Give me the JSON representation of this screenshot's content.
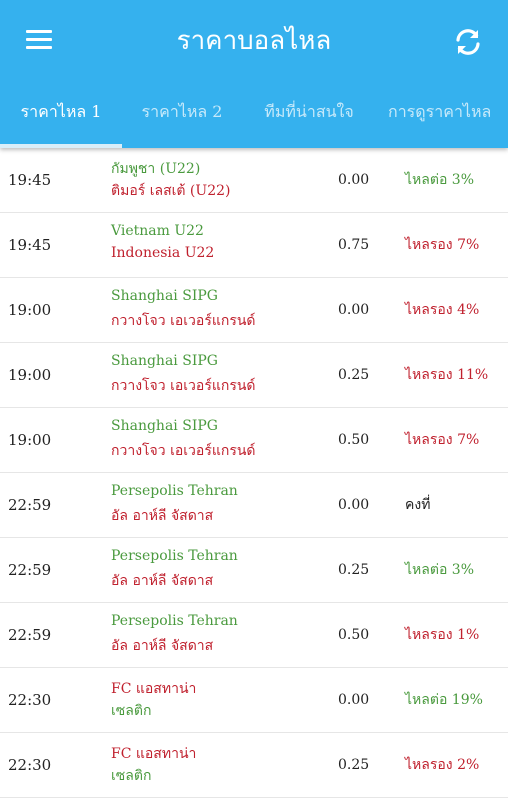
{
  "colors": {
    "appbar": "#35B1EE",
    "green": "#4A9A3E",
    "red": "#C0212E",
    "neutral": "#222222"
  },
  "header": {
    "title": "ราคาบอลไหล",
    "menu_icon": "hamburger-menu-icon",
    "refresh_icon": "refresh-icon"
  },
  "tabs": [
    {
      "label": "ราคาไหล 1",
      "active": true
    },
    {
      "label": "ราคาไหล 2",
      "active": false
    },
    {
      "label": "ทีมที่น่าสนใจ",
      "active": false
    },
    {
      "label": "การดูราคาไหล",
      "active": false
    }
  ],
  "matches": [
    {
      "time": "19:45",
      "home": "กัมพูชา (U22)",
      "home_color": "#4A9A3E",
      "away": "ติมอร์ เลสเต้ (U22)",
      "away_color": "#C0212E",
      "rate": "0.00",
      "odds": "ไหลต่อ 3%",
      "odds_color": "#4A9A3E"
    },
    {
      "time": "19:45",
      "home": "Vietnam U22",
      "home_color": "#4A9A3E",
      "away": "Indonesia U22",
      "away_color": "#C0212E",
      "rate": "0.75",
      "odds": "ไหลรอง 7%",
      "odds_color": "#C0212E"
    },
    {
      "time": "19:00",
      "home": "Shanghai SIPG",
      "home_color": "#4A9A3E",
      "away": "กวางโจว เอเวอร์แกรนด์",
      "away_color": "#C0212E",
      "rate": "0.00",
      "odds": "ไหลรอง 4%",
      "odds_color": "#C0212E"
    },
    {
      "time": "19:00",
      "home": "Shanghai SIPG",
      "home_color": "#4A9A3E",
      "away": "กวางโจว เอเวอร์แกรนด์",
      "away_color": "#C0212E",
      "rate": "0.25",
      "odds": "ไหลรอง 11%",
      "odds_color": "#C0212E"
    },
    {
      "time": "19:00",
      "home": "Shanghai SIPG",
      "home_color": "#4A9A3E",
      "away": "กวางโจว เอเวอร์แกรนด์",
      "away_color": "#C0212E",
      "rate": "0.50",
      "odds": "ไหลรอง 7%",
      "odds_color": "#C0212E"
    },
    {
      "time": "22:59",
      "home": "Persepolis Tehran",
      "home_color": "#4A9A3E",
      "away": "อัล อาห์ลี จัสดาส",
      "away_color": "#C0212E",
      "rate": "0.00",
      "odds": "คงที่",
      "odds_color": "#222222"
    },
    {
      "time": "22:59",
      "home": "Persepolis Tehran",
      "home_color": "#4A9A3E",
      "away": "อัล อาห์ลี จัสดาส",
      "away_color": "#C0212E",
      "rate": "0.25",
      "odds": "ไหลต่อ 3%",
      "odds_color": "#4A9A3E"
    },
    {
      "time": "22:59",
      "home": "Persepolis Tehran",
      "home_color": "#4A9A3E",
      "away": "อัล อาห์ลี จัสดาส",
      "away_color": "#C0212E",
      "rate": "0.50",
      "odds": "ไหลรอง 1%",
      "odds_color": "#C0212E"
    },
    {
      "time": "22:30",
      "home": "FC แอสทาน่า",
      "home_color": "#C0212E",
      "away": "เซลติก",
      "away_color": "#4A9A3E",
      "rate": "0.00",
      "odds": "ไหลต่อ 19%",
      "odds_color": "#4A9A3E"
    },
    {
      "time": "22:30",
      "home": "FC แอสทาน่า",
      "home_color": "#C0212E",
      "away": "เซลติก",
      "away_color": "#4A9A3E",
      "rate": "0.25",
      "odds": "ไหลรอง 2%",
      "odds_color": "#C0212E"
    }
  ]
}
